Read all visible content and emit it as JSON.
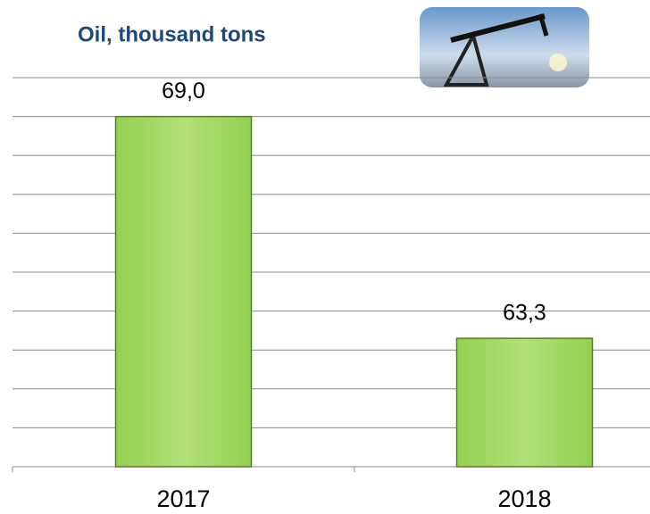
{
  "chart_data": {
    "type": "bar",
    "title": "Oil, thousand tons",
    "categories": [
      "2017",
      "2018"
    ],
    "values": [
      69.0,
      63.3
    ],
    "value_labels": [
      "69,0",
      "63,3"
    ],
    "color": "#92d050",
    "ylim": [
      60,
      70
    ],
    "yticks": [
      60,
      61,
      62,
      63,
      64,
      65,
      66,
      67,
      68,
      69,
      70
    ],
    "grid": true
  }
}
